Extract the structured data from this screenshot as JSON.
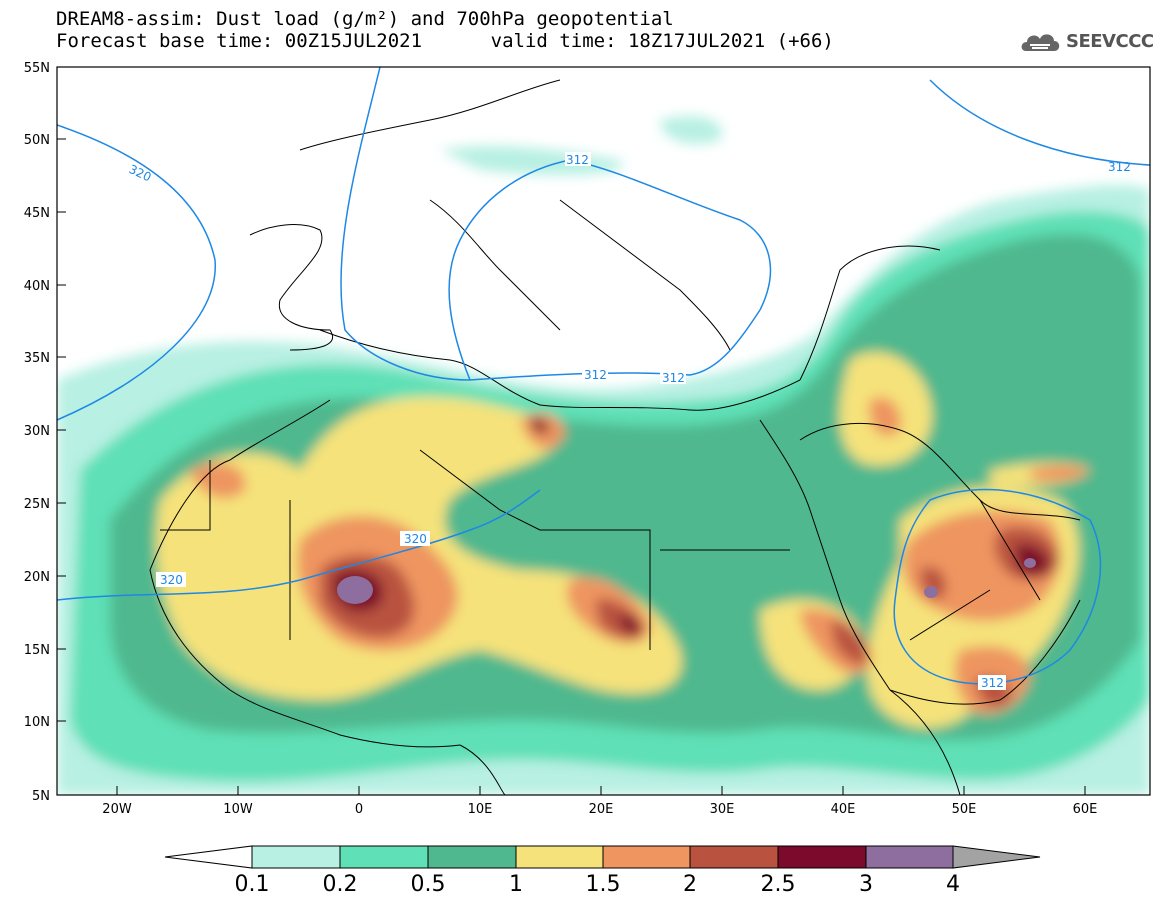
{
  "header": {
    "title_line1": "DREAM8-assim: Dust load (g/m²) and 700hPa geopotential",
    "title_line2": "Forecast base time: 00Z15JUL2021      valid time: 18Z17JUL2021 (+66)",
    "logo_text": "SEEVCCC"
  },
  "map": {
    "lat_labels": [
      "55N",
      "50N",
      "45N",
      "40N",
      "35N",
      "30N",
      "25N",
      "20N",
      "15N",
      "10N",
      "5N"
    ],
    "lon_labels": [
      "20W",
      "10W",
      "0",
      "10E",
      "20E",
      "30E",
      "40E",
      "50E",
      "60E"
    ],
    "isolines": [
      {
        "label": "320",
        "color": "#1e88e5"
      },
      {
        "label": "312",
        "color": "#1e88e5"
      }
    ],
    "isoline_labels": [
      "320",
      "312",
      "312",
      "312",
      "320",
      "320",
      "312",
      "312"
    ]
  },
  "colorbar": {
    "ticks": [
      "0.1",
      "0.2",
      "0.5",
      "1",
      "1.5",
      "2",
      "2.5",
      "3",
      "4"
    ],
    "colors": [
      "#b8f0e3",
      "#5fe0b6",
      "#4fb88e",
      "#f5e27a",
      "#ee9560",
      "#b9523f",
      "#7c0a2c",
      "#8e6e9e",
      "#a3a3a3"
    ]
  },
  "chart_data": {
    "type": "heatmap",
    "title": "DREAM8-assim: Dust load (g/m²) and 700hPa geopotential",
    "lon_range": [
      -25,
      65
    ],
    "lat_range": [
      5,
      55
    ],
    "xlabels": [
      "20W",
      "10W",
      "0",
      "10E",
      "20E",
      "30E",
      "40E",
      "50E",
      "60E"
    ],
    "ylabels": [
      "55N",
      "50N",
      "45N",
      "40N",
      "35N",
      "30N",
      "25N",
      "20N",
      "15N",
      "10N",
      "5N"
    ],
    "legend_levels": [
      0.1,
      0.2,
      0.5,
      1,
      1.5,
      2,
      2.5,
      3,
      4
    ],
    "legend_placement": "bottom",
    "contour_levels_700hPa": [
      312,
      320
    ],
    "grid": false
  }
}
